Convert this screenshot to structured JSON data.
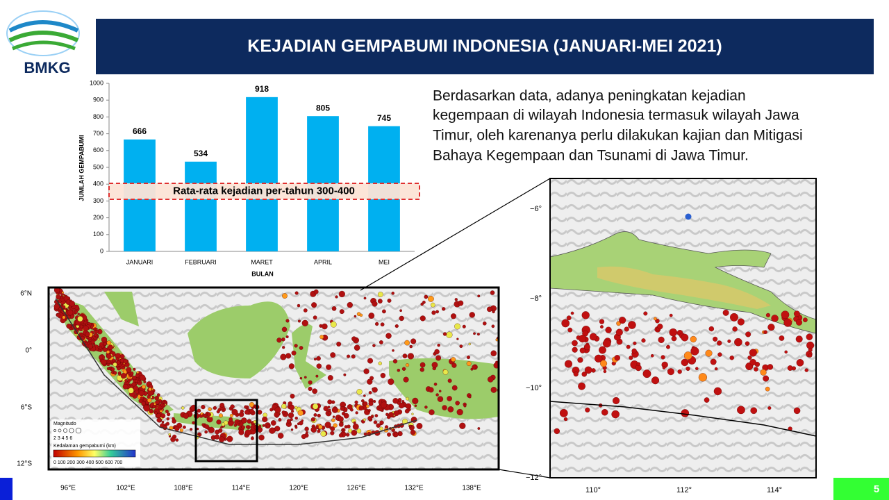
{
  "logo": "BMKG",
  "header": {
    "title": "KEJADIAN GEMPABUMI INDONESIA (JANUARI-MEI 2021)"
  },
  "paragraph": [
    "Berdasarkan data, adanya  peningkatan kejadian",
    "kegempaan di wilayah Indonesia termasuk wilayah Jawa",
    "Timur, oleh karenanya perlu dilakukan kajian dan Mitigasi",
    "Bahaya Kegempaan dan Tsunami di Jawa Timur."
  ],
  "chart_data": {
    "type": "bar",
    "x_label": "BULAN",
    "y_label": "JUMLAH GEMPABUMI",
    "categories": [
      "JANUARI",
      "FEBRUARI",
      "MARET",
      "APRIL",
      "MEI"
    ],
    "values": [
      666,
      534,
      918,
      805,
      745
    ],
    "color": "#00b0f0",
    "ylim": [
      0,
      1000
    ],
    "yticks": [
      0,
      100,
      200,
      300,
      400,
      500,
      600,
      700,
      800,
      900,
      1000
    ],
    "reference_band": {
      "range": [
        310,
        405
      ],
      "label": "Rata-rata kejadian per-tahun 300-400"
    }
  },
  "overview_map": {
    "lat_labels": [
      "6°N",
      "0°",
      "6°S",
      "12°S"
    ],
    "lon_labels": [
      "96°E",
      "102°E",
      "108°E",
      "114°E",
      "120°E",
      "126°E",
      "132°E",
      "138°E"
    ],
    "legend": {
      "magnitude_title": "Magnitudo",
      "magnitude_scale": "2 3 4 5 6",
      "depth_title": "Kedalaman gempabumi (km)",
      "depth_scale": "0  100 200 300 400 500 600 700"
    }
  },
  "detail_map": {
    "lat_labels": [
      "−6°",
      "−8°",
      "−10°",
      "−12°"
    ],
    "lon_labels": [
      "110°",
      "112°",
      "114°"
    ]
  },
  "page_number": "5"
}
